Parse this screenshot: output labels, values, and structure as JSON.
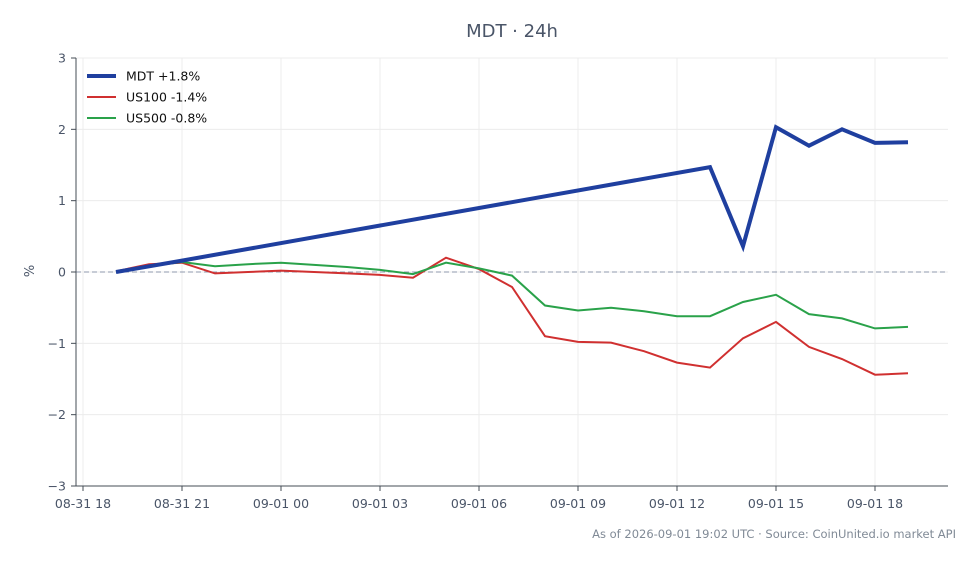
{
  "chart_data": {
    "type": "line",
    "title": "MDT · 24h",
    "xlabel": "",
    "ylabel": "%",
    "ylim": [
      -3,
      3
    ],
    "yticks": [
      -3,
      -2,
      -1,
      0,
      1,
      2,
      3
    ],
    "ytick_labels": [
      "−3",
      "−2",
      "−1",
      "0",
      "1",
      "2",
      "3"
    ],
    "xlim": [
      0,
      25
    ],
    "xtick_labels": [
      "08-31 18",
      "08-31 21",
      "09-01 00",
      "09-01 03",
      "09-01 06",
      "09-01 09",
      "09-01 12",
      "09-01 15",
      "09-01 18"
    ],
    "xtick_hours": [
      0,
      3,
      6,
      9,
      12,
      15,
      18,
      21,
      24
    ],
    "grid": true,
    "zero_line": true,
    "legend_placement": "top-left",
    "series": [
      {
        "name": "MDT +1.8%",
        "color": "#1f3f9f",
        "width": 4,
        "x": [
          1,
          3,
          19,
          20,
          21,
          22,
          23,
          24,
          25
        ],
        "values": [
          0.0,
          0.16,
          1.47,
          0.36,
          2.03,
          1.77,
          2.0,
          1.81,
          1.82
        ]
      },
      {
        "name": "US100 -1.4%",
        "color": "#d03030",
        "width": 2,
        "x": [
          1,
          2,
          3,
          4,
          5,
          6,
          7,
          8,
          9,
          10,
          11,
          12,
          13,
          14,
          15,
          16,
          17,
          18,
          19,
          20,
          21,
          22,
          23,
          24,
          25
        ],
        "values": [
          0.01,
          0.11,
          0.13,
          -0.02,
          0.0,
          0.02,
          0.0,
          -0.02,
          -0.04,
          -0.08,
          0.2,
          0.04,
          -0.21,
          -0.9,
          -0.98,
          -0.99,
          -1.11,
          -1.27,
          -1.34,
          -0.93,
          -0.7,
          -1.05,
          -1.22,
          -1.44,
          -1.42
        ]
      },
      {
        "name": "US500 -0.8%",
        "color": "#2aa24a",
        "width": 2,
        "x": [
          1,
          2,
          3,
          4,
          5,
          6,
          7,
          8,
          9,
          10,
          11,
          12,
          13,
          14,
          15,
          16,
          17,
          18,
          19,
          20,
          21,
          22,
          23,
          24,
          25
        ],
        "values": [
          0.0,
          0.08,
          0.14,
          0.08,
          0.11,
          0.13,
          0.1,
          0.07,
          0.03,
          -0.03,
          0.13,
          0.05,
          -0.05,
          -0.47,
          -0.54,
          -0.5,
          -0.55,
          -0.62,
          -0.62,
          -0.42,
          -0.32,
          -0.59,
          -0.65,
          -0.79,
          -0.77
        ]
      }
    ],
    "footnote": "As of 2026-09-01 19:02 UTC · Source: CoinUnited.io market API"
  }
}
